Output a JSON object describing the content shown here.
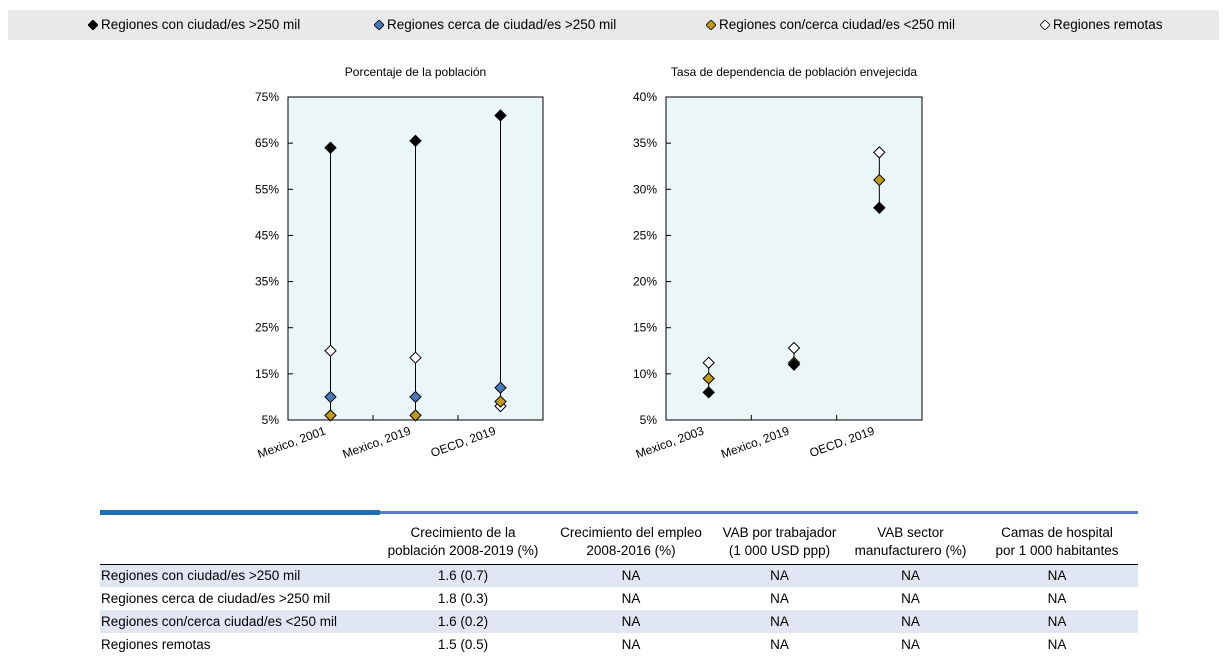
{
  "legend": [
    {
      "label": "Regiones con ciudad/es >250 mil",
      "color": "#000000"
    },
    {
      "label": "Regiones cerca de ciudad/es >250 mil",
      "color": "#4a78b8"
    },
    {
      "label": "Regiones con/cerca ciudad/es <250 mil",
      "color": "#c09a1a"
    },
    {
      "label": "Regiones remotas",
      "color": "#ffffff"
    }
  ],
  "chart_data": [
    {
      "type": "scatter",
      "title": "Porcentaje de la población",
      "categories": [
        "Mexico, 2001",
        "Mexico, 2019",
        "OECD, 2019"
      ],
      "ylim": [
        5,
        75
      ],
      "yticks": [
        5,
        15,
        25,
        35,
        45,
        55,
        65,
        75
      ],
      "ytick_labels": [
        "5%",
        "15%",
        "25%",
        "35%",
        "45%",
        "55%",
        "65%",
        "75%"
      ],
      "series": [
        {
          "name": "Regiones con ciudad/es >250 mil",
          "values": [
            64,
            65.5,
            71
          ]
        },
        {
          "name": "Regiones cerca de ciudad/es >250 mil",
          "values": [
            10,
            10,
            12
          ]
        },
        {
          "name": "Regiones con/cerca ciudad/es <250 mil",
          "values": [
            6,
            6,
            9
          ]
        },
        {
          "name": "Regiones remotas",
          "values": [
            20,
            18.5,
            8
          ]
        }
      ]
    },
    {
      "type": "scatter",
      "title": "Tasa de dependencia de población envejecida",
      "categories": [
        "Mexico, 2003",
        "Mexico, 2019",
        "OECD, 2019"
      ],
      "ylim": [
        5,
        40
      ],
      "yticks": [
        5,
        10,
        15,
        20,
        25,
        30,
        35,
        40
      ],
      "ytick_labels": [
        "5%",
        "10%",
        "15%",
        "20%",
        "25%",
        "30%",
        "35%",
        "40%"
      ],
      "series": [
        {
          "name": "Regiones con ciudad/es >250 mil",
          "values": [
            8,
            11,
            28
          ]
        },
        {
          "name": "Regiones cerca de ciudad/es >250 mil",
          "values": [
            null,
            null,
            null
          ]
        },
        {
          "name": "Regiones con/cerca ciudad/es <250 mil",
          "values": [
            9.5,
            11.2,
            31
          ]
        },
        {
          "name": "Regiones remotas",
          "values": [
            11.2,
            12.8,
            34
          ]
        }
      ]
    }
  ],
  "colors": {
    "plot_bg": "#eaf6f7",
    "series": [
      "#000000",
      "#4a78b8",
      "#c09a1a",
      "#ffffff"
    ]
  },
  "table": {
    "headers": [
      "",
      [
        "Crecimiento de la",
        "población 2008-2019 (%)"
      ],
      [
        "Crecimiento del empleo",
        "2008-2016 (%)"
      ],
      [
        "VAB por trabajador",
        "(1 000 USD ppp)"
      ],
      [
        "VAB sector",
        "manufacturero (%)"
      ],
      [
        "Camas de hospital",
        "por 1 000 habitantes"
      ]
    ],
    "rows": [
      [
        "Regiones con ciudad/es >250 mil",
        "1.6  (0.7)",
        "NA",
        "NA",
        "NA",
        "NA"
      ],
      [
        "Regiones cerca de ciudad/es >250 mil",
        "1.8  (0.3)",
        "NA",
        "NA",
        "NA",
        "NA"
      ],
      [
        "Regiones con/cerca ciudad/es <250 mil",
        "1.6  (0.2)",
        "NA",
        "NA",
        "NA",
        "NA"
      ],
      [
        "Regiones remotas",
        "1.5  (0.5)",
        "NA",
        "NA",
        "NA",
        "NA"
      ]
    ]
  }
}
